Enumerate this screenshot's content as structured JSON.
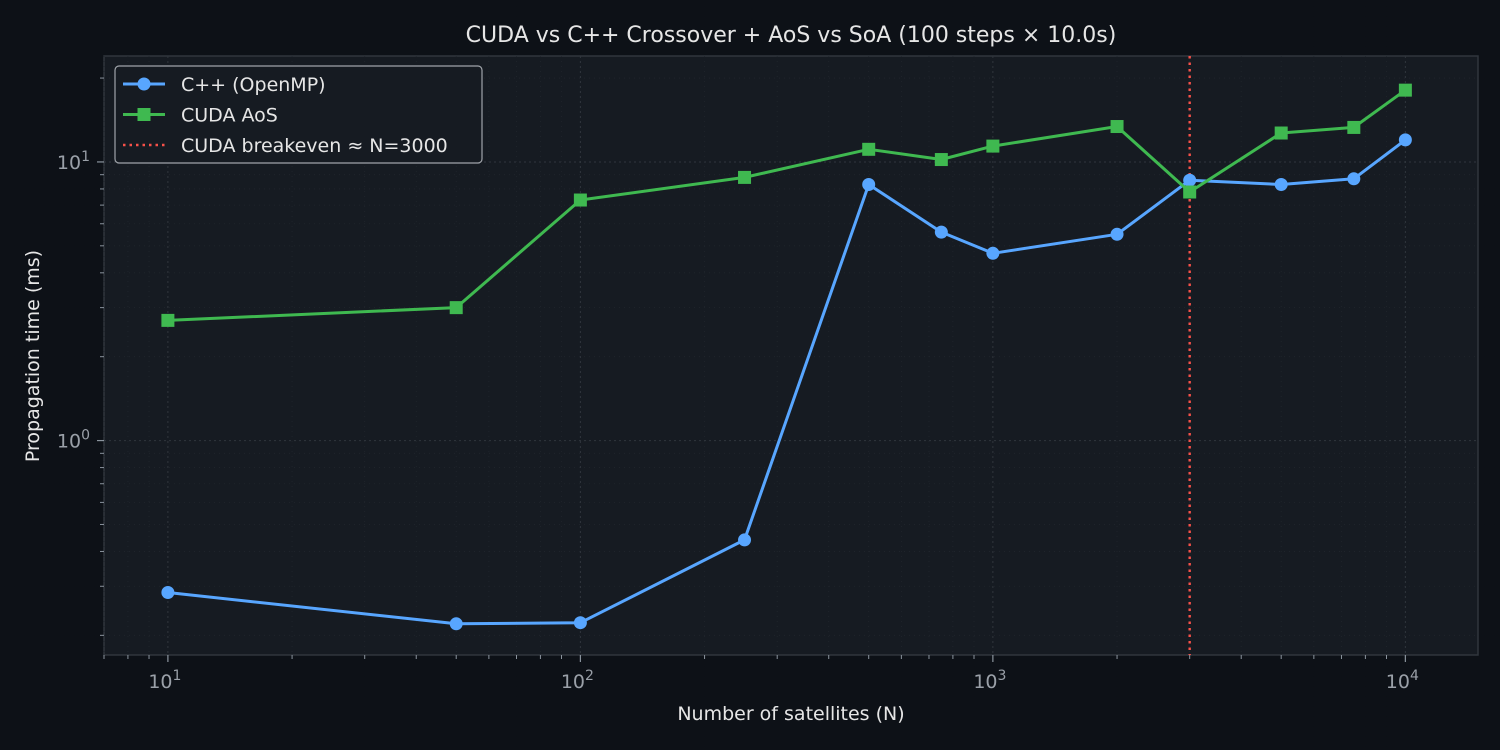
{
  "chart_data": {
    "type": "line",
    "title": "CUDA vs C++ Crossover + AoS vs SoA  (100 steps × 10.0s)",
    "xlabel": "Number of satellites (N)",
    "ylabel": "Propagation time (ms)",
    "xscale": "log",
    "yscale": "log",
    "xlim": [
      7,
      15000
    ],
    "ylim": [
      0.17,
      24
    ],
    "x_ticks": [
      {
        "value": 10,
        "base": "10",
        "exp": "1"
      },
      {
        "value": 100,
        "base": "10",
        "exp": "2"
      },
      {
        "value": 1000,
        "base": "10",
        "exp": "3"
      },
      {
        "value": 10000,
        "base": "10",
        "exp": "4"
      }
    ],
    "y_ticks": [
      {
        "value": 1,
        "base": "10",
        "exp": "0"
      },
      {
        "value": 10,
        "base": "10",
        "exp": "1"
      }
    ],
    "grid": true,
    "legend_position": "top-left",
    "series": [
      {
        "name": "C++ (OpenMP)",
        "color": "#58a6ff",
        "marker": "circle",
        "x": [
          10,
          50,
          100,
          250,
          500,
          750,
          1000,
          2000,
          3000,
          5000,
          7500,
          10000
        ],
        "y": [
          0.285,
          0.22,
          0.222,
          0.44,
          8.3,
          5.6,
          4.7,
          5.5,
          8.6,
          8.3,
          8.7,
          12.0
        ]
      },
      {
        "name": "CUDA AoS",
        "color": "#3fb950",
        "marker": "square",
        "x": [
          10,
          50,
          100,
          250,
          500,
          750,
          1000,
          2000,
          3000,
          5000,
          7500,
          10000
        ],
        "y": [
          2.7,
          3.0,
          7.3,
          8.8,
          11.1,
          10.2,
          11.4,
          13.4,
          7.8,
          12.7,
          13.3,
          18.1
        ]
      }
    ],
    "annotations": [
      {
        "type": "vline",
        "x": 3000,
        "color": "#f85149",
        "style": "dotted",
        "label": "CUDA breakeven ≈ N=3000"
      }
    ]
  }
}
